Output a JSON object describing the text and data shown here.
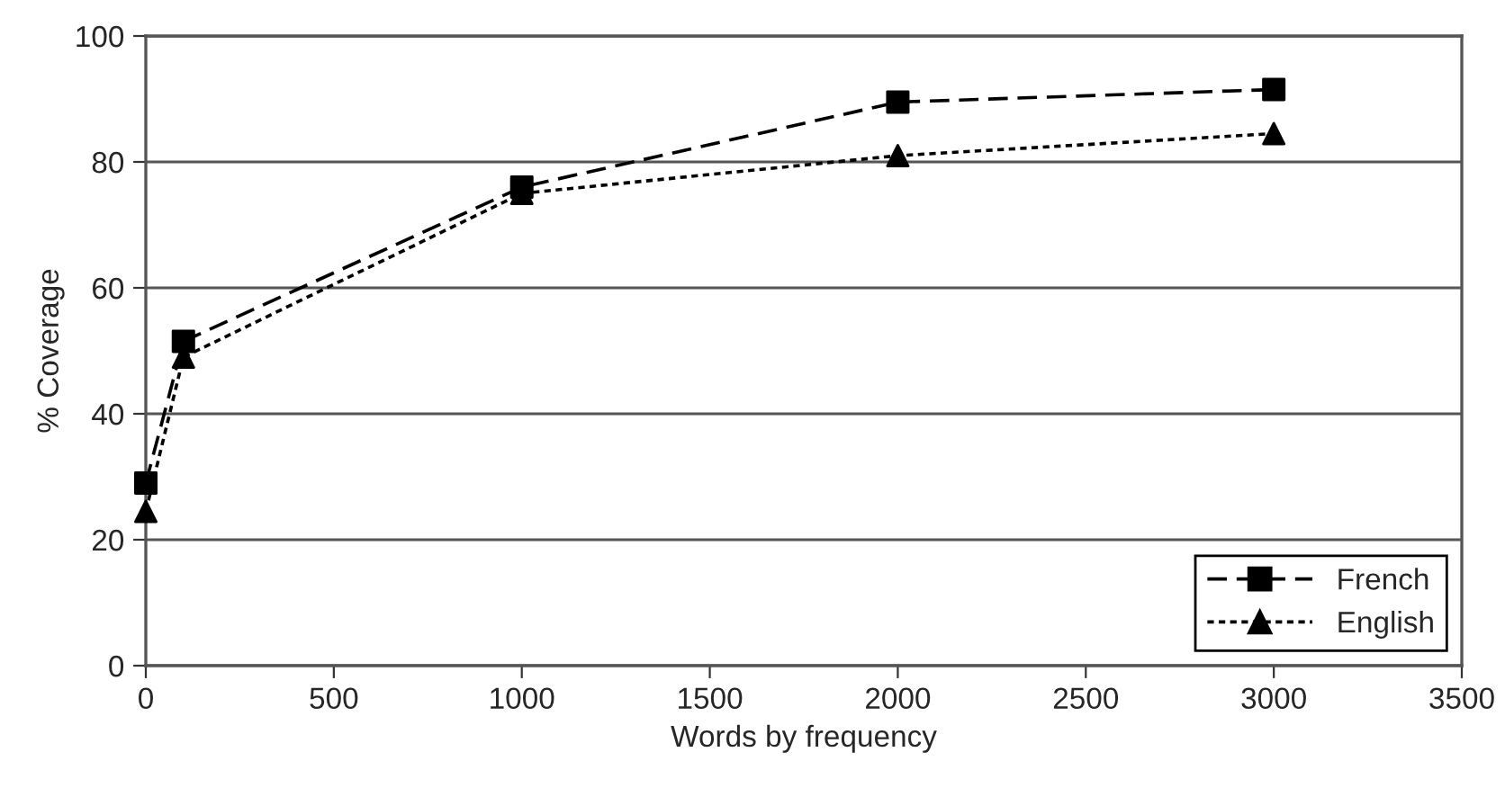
{
  "chart_data": {
    "type": "line",
    "xlabel": "Words by frequency",
    "ylabel": "% Coverage",
    "x": [
      0,
      100,
      1000,
      2000,
      3000
    ],
    "series": [
      {
        "name": "French",
        "color": "#000000",
        "values": [
          29,
          51.5,
          76,
          89.5,
          91.5
        ],
        "marker": "square",
        "line_style": "dashed"
      },
      {
        "name": "English",
        "color": "#000000",
        "values": [
          24.5,
          49,
          75,
          81,
          84.5
        ],
        "marker": "triangle",
        "line_style": "dotted"
      }
    ],
    "xlim": [
      0,
      3500
    ],
    "xticks": [
      0,
      500,
      1000,
      1500,
      2000,
      2500,
      3000,
      3500
    ],
    "ylim": [
      0,
      100
    ],
    "yticks": [
      0,
      20,
      40,
      60,
      80,
      100
    ],
    "grid": "y",
    "legend": "bottom right"
  }
}
